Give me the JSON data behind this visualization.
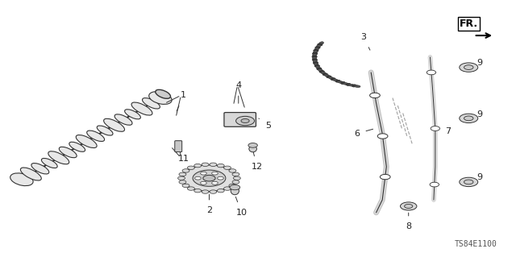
{
  "title": "",
  "bg_color": "#ffffff",
  "fig_width": 6.4,
  "fig_height": 3.19,
  "dpi": 100,
  "diagram_code": "TS84E1100",
  "fr_label": "FR.",
  "part_label_fontsize": 8,
  "code_fontsize": 7,
  "fr_fontsize": 9,
  "line_color": "#333333",
  "text_color": "#222222"
}
